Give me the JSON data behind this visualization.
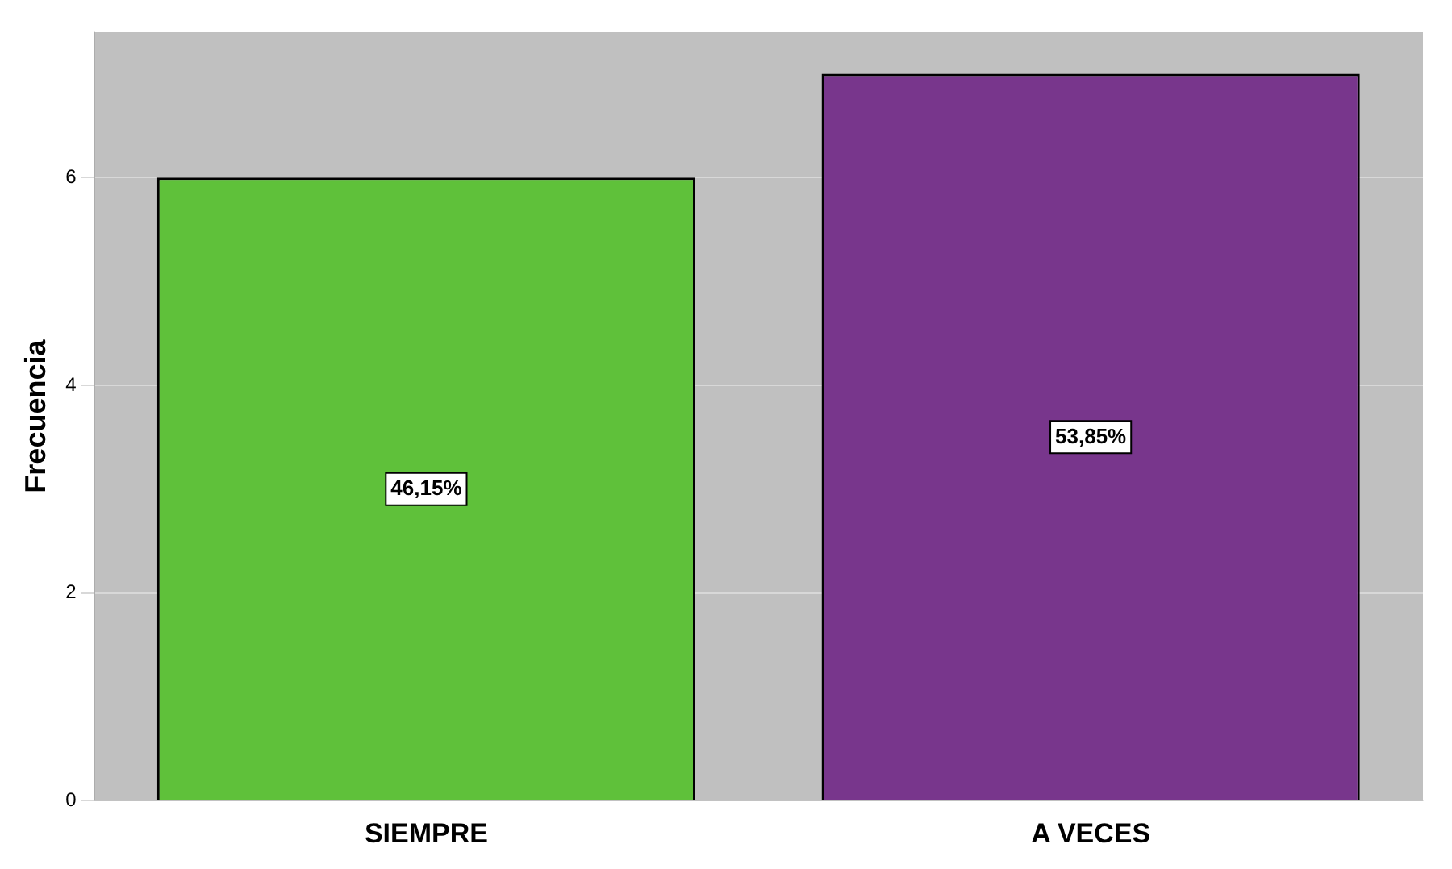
{
  "chart_data": {
    "type": "bar",
    "ylabel": "Frecuencia",
    "categories": [
      "SIEMPRE",
      "A VECES"
    ],
    "values": [
      6,
      7
    ],
    "colors": [
      "#5fc13a",
      "#78368c"
    ],
    "annotations": [
      "46,15%",
      "53,85%"
    ],
    "ylim": [
      0,
      7.4
    ],
    "yticks": [
      0,
      2,
      4,
      6
    ],
    "grid": "y",
    "legend": false
  }
}
